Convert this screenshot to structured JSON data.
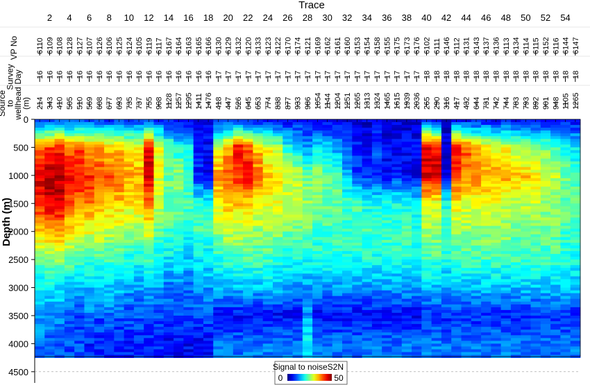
{
  "chart_data": {
    "type": "heatmap",
    "top_axis": {
      "label": "Trace",
      "ticks": [
        2,
        4,
        6,
        8,
        10,
        12,
        14,
        16,
        18,
        20,
        22,
        24,
        26,
        28,
        30,
        32,
        34,
        36,
        38,
        40,
        42,
        44,
        46,
        48,
        50,
        52,
        54
      ]
    },
    "ylabel": "Depth (m)",
    "ylim": [
      0,
      4700
    ],
    "yticks": [
      0,
      500,
      1000,
      1500,
      2000,
      2500,
      3000,
      3500,
      4000,
      4500
    ],
    "header_rows": [
      {
        "label": "VP No"
      },
      {
        "label": "Survey Day"
      },
      {
        "label": "Source to wellhead (m)"
      }
    ],
    "traces": [
      {
        "trace": 1,
        "vp": "6110",
        "day": "16",
        "dist": "214"
      },
      {
        "trace": 2,
        "vp": "6109",
        "day": "16",
        "dist": "343"
      },
      {
        "trace": 3,
        "vp": "6108",
        "day": "16",
        "dist": "410"
      },
      {
        "trace": 4,
        "vp": "6128",
        "day": "16",
        "dist": "505"
      },
      {
        "trace": 5,
        "vp": "6127",
        "day": "16",
        "dist": "510"
      },
      {
        "trace": 6,
        "vp": "6107",
        "day": "16",
        "dist": "569"
      },
      {
        "trace": 7,
        "vp": "6126",
        "day": "16",
        "dist": "608"
      },
      {
        "trace": 8,
        "vp": "6106",
        "day": "16",
        "dist": "677"
      },
      {
        "trace": 9,
        "vp": "6125",
        "day": "16",
        "dist": "693"
      },
      {
        "trace": 10,
        "vp": "6124",
        "day": "16",
        "dist": "735"
      },
      {
        "trace": 11,
        "vp": "6105",
        "day": "16",
        "dist": "737"
      },
      {
        "trace": 12,
        "vp": "6119",
        "day": "16",
        "dist": "755"
      },
      {
        "trace": 13,
        "vp": "6117",
        "day": "16",
        "dist": "908"
      },
      {
        "trace": 14,
        "vp": "6167",
        "day": "16",
        "dist": "1128"
      },
      {
        "trace": 15,
        "vp": "6164",
        "day": "16",
        "dist": "1257"
      },
      {
        "trace": 16,
        "vp": "6163",
        "day": "16",
        "dist": "1295"
      },
      {
        "trace": 17,
        "vp": "6165",
        "day": "16",
        "dist": "1411"
      },
      {
        "trace": 18,
        "vp": "6166",
        "day": "16",
        "dist": "1476"
      },
      {
        "trace": 19,
        "vp": "6130",
        "day": "17",
        "dist": "418"
      },
      {
        "trace": 20,
        "vp": "6129",
        "day": "17",
        "dist": "447"
      },
      {
        "trace": 21,
        "vp": "6132",
        "day": "17",
        "dist": "526"
      },
      {
        "trace": 22,
        "vp": "6120",
        "day": "17",
        "dist": "645"
      },
      {
        "trace": 23,
        "vp": "6133",
        "day": "17",
        "dist": "653"
      },
      {
        "trace": 24,
        "vp": "6123",
        "day": "17",
        "dist": "774"
      },
      {
        "trace": 25,
        "vp": "6122",
        "day": "17",
        "dist": "838"
      },
      {
        "trace": 26,
        "vp": "6170",
        "day": "17",
        "dist": "877"
      },
      {
        "trace": 27,
        "vp": "6174",
        "day": "17",
        "dist": "933"
      },
      {
        "trace": 28,
        "vp": "6121",
        "day": "17",
        "dist": "986"
      },
      {
        "trace": 29,
        "vp": "6169",
        "day": "17",
        "dist": "1054"
      },
      {
        "trace": 30,
        "vp": "6162",
        "day": "17",
        "dist": "1144"
      },
      {
        "trace": 31,
        "vp": "6161",
        "day": "17",
        "dist": "1204"
      },
      {
        "trace": 32,
        "vp": "6160",
        "day": "17",
        "dist": "1251"
      },
      {
        "trace": 33,
        "vp": "6153",
        "day": "17",
        "dist": "1265"
      },
      {
        "trace": 34,
        "vp": "6154",
        "day": "17",
        "dist": "1313"
      },
      {
        "trace": 35,
        "vp": "6158",
        "day": "17",
        "dist": "1324"
      },
      {
        "trace": 36,
        "vp": "6155",
        "day": "17",
        "dist": "1465"
      },
      {
        "trace": 37,
        "vp": "6175",
        "day": "17",
        "dist": "1615"
      },
      {
        "trace": 38,
        "vp": "6173",
        "day": "17",
        "dist": "1939"
      },
      {
        "trace": 39,
        "vp": "6176",
        "day": "17",
        "dist": "2036"
      },
      {
        "trace": 40,
        "vp": "6102",
        "day": "18",
        "dist": "265"
      },
      {
        "trace": 41,
        "vp": "6111",
        "day": "18",
        "dist": "290"
      },
      {
        "trace": 42,
        "vp": "6146",
        "day": "18",
        "dist": "316"
      },
      {
        "trace": 43,
        "vp": "6112",
        "day": "18",
        "dist": "417"
      },
      {
        "trace": 44,
        "vp": "6131",
        "day": "18",
        "dist": "432"
      },
      {
        "trace": 45,
        "vp": "6143",
        "day": "18",
        "dist": "644"
      },
      {
        "trace": 46,
        "vp": "6137",
        "day": "18",
        "dist": "731"
      },
      {
        "trace": 47,
        "vp": "6136",
        "day": "18",
        "dist": "742"
      },
      {
        "trace": 48,
        "vp": "6113",
        "day": "18",
        "dist": "744"
      },
      {
        "trace": 49,
        "vp": "6134",
        "day": "18",
        "dist": "783"
      },
      {
        "trace": 50,
        "vp": "6114",
        "day": "18",
        "dist": "793"
      },
      {
        "trace": 51,
        "vp": "6115",
        "day": "18",
        "dist": "892"
      },
      {
        "trace": 52,
        "vp": "6152",
        "day": "18",
        "dist": "901"
      },
      {
        "trace": 53,
        "vp": "6116",
        "day": "18",
        "dist": "948"
      },
      {
        "trace": 54,
        "vp": "6144",
        "day": "18",
        "dist": "1105"
      },
      {
        "trace": 55,
        "vp": "6147",
        "day": "18",
        "dist": "1265"
      }
    ],
    "colorbar": {
      "label": "Signal to noiseS2N",
      "min": 0,
      "max": 50,
      "colormap": "jet"
    },
    "depth_samples": [
      0,
      500,
      1000,
      1500,
      2000,
      2500,
      3000,
      3500,
      4000
    ],
    "snr_approx": [
      [
        8,
        38,
        46,
        42,
        34,
        24,
        18,
        14,
        12
      ],
      [
        8,
        40,
        48,
        46,
        36,
        26,
        18,
        14,
        10
      ],
      [
        8,
        42,
        47,
        46,
        36,
        26,
        18,
        14,
        10
      ],
      [
        8,
        38,
        44,
        40,
        32,
        24,
        16,
        12,
        10
      ],
      [
        8,
        40,
        44,
        38,
        30,
        22,
        16,
        10,
        10
      ],
      [
        8,
        36,
        42,
        38,
        30,
        22,
        16,
        12,
        8
      ],
      [
        8,
        36,
        40,
        36,
        30,
        22,
        16,
        10,
        8
      ],
      [
        8,
        34,
        40,
        34,
        28,
        22,
        16,
        12,
        8
      ],
      [
        8,
        34,
        38,
        34,
        28,
        22,
        16,
        10,
        8
      ],
      [
        8,
        32,
        36,
        32,
        26,
        20,
        14,
        10,
        8
      ],
      [
        8,
        30,
        36,
        32,
        26,
        20,
        14,
        10,
        8
      ],
      [
        8,
        44,
        46,
        38,
        30,
        22,
        14,
        10,
        8
      ],
      [
        8,
        30,
        30,
        28,
        24,
        18,
        14,
        10,
        8
      ],
      [
        6,
        24,
        24,
        24,
        22,
        18,
        12,
        10,
        6
      ],
      [
        6,
        20,
        26,
        24,
        22,
        18,
        12,
        10,
        6
      ],
      [
        6,
        18,
        22,
        22,
        20,
        16,
        12,
        10,
        6
      ],
      [
        6,
        8,
        8,
        20,
        22,
        18,
        14,
        10,
        6
      ],
      [
        6,
        6,
        6,
        20,
        22,
        18,
        14,
        10,
        6
      ],
      [
        6,
        30,
        36,
        32,
        26,
        20,
        16,
        6,
        12
      ],
      [
        6,
        36,
        40,
        34,
        28,
        22,
        16,
        6,
        12
      ],
      [
        6,
        44,
        42,
        34,
        28,
        22,
        16,
        6,
        12
      ],
      [
        6,
        40,
        44,
        34,
        28,
        22,
        16,
        6,
        12
      ],
      [
        6,
        34,
        38,
        32,
        26,
        22,
        16,
        6,
        12
      ],
      [
        6,
        30,
        34,
        30,
        26,
        22,
        16,
        6,
        12
      ],
      [
        6,
        28,
        32,
        30,
        26,
        20,
        16,
        6,
        12
      ],
      [
        6,
        20,
        30,
        28,
        24,
        20,
        14,
        6,
        12
      ],
      [
        6,
        18,
        28,
        28,
        24,
        20,
        14,
        6,
        12
      ],
      [
        6,
        14,
        24,
        26,
        24,
        20,
        14,
        14,
        18
      ],
      [
        6,
        18,
        26,
        26,
        22,
        20,
        14,
        6,
        12
      ],
      [
        6,
        16,
        24,
        24,
        22,
        20,
        14,
        6,
        12
      ],
      [
        6,
        14,
        22,
        24,
        22,
        20,
        14,
        6,
        12
      ],
      [
        4,
        10,
        16,
        22,
        22,
        20,
        14,
        6,
        12
      ],
      [
        4,
        8,
        10,
        22,
        22,
        20,
        14,
        6,
        12
      ],
      [
        4,
        6,
        8,
        20,
        22,
        20,
        14,
        6,
        12
      ],
      [
        4,
        10,
        8,
        20,
        22,
        20,
        14,
        6,
        12
      ],
      [
        4,
        6,
        6,
        20,
        22,
        20,
        14,
        6,
        12
      ],
      [
        4,
        6,
        8,
        20,
        22,
        20,
        14,
        6,
        12
      ],
      [
        4,
        6,
        6,
        20,
        22,
        20,
        14,
        6,
        12
      ],
      [
        4,
        6,
        6,
        18,
        20,
        20,
        14,
        6,
        12
      ],
      [
        6,
        46,
        46,
        30,
        26,
        22,
        16,
        8,
        12
      ],
      [
        6,
        44,
        46,
        30,
        26,
        22,
        16,
        8,
        12
      ],
      [
        4,
        4,
        4,
        20,
        22,
        20,
        14,
        8,
        12
      ],
      [
        6,
        44,
        40,
        32,
        26,
        22,
        16,
        8,
        12
      ],
      [
        6,
        40,
        38,
        30,
        26,
        22,
        16,
        8,
        12
      ],
      [
        6,
        34,
        38,
        30,
        26,
        22,
        16,
        8,
        12
      ],
      [
        6,
        32,
        36,
        30,
        26,
        22,
        16,
        8,
        12
      ],
      [
        6,
        30,
        36,
        30,
        26,
        22,
        16,
        8,
        12
      ],
      [
        6,
        30,
        36,
        28,
        26,
        22,
        16,
        8,
        12
      ],
      [
        6,
        28,
        34,
        28,
        24,
        22,
        16,
        8,
        12
      ],
      [
        6,
        26,
        34,
        28,
        24,
        22,
        16,
        8,
        12
      ],
      [
        6,
        26,
        32,
        28,
        24,
        22,
        16,
        8,
        12
      ],
      [
        6,
        24,
        30,
        26,
        24,
        22,
        16,
        8,
        12
      ],
      [
        6,
        22,
        28,
        26,
        24,
        22,
        16,
        8,
        12
      ],
      [
        6,
        20,
        24,
        24,
        22,
        20,
        16,
        8,
        12
      ],
      [
        6,
        18,
        22,
        24,
        22,
        20,
        16,
        8,
        12
      ]
    ]
  }
}
